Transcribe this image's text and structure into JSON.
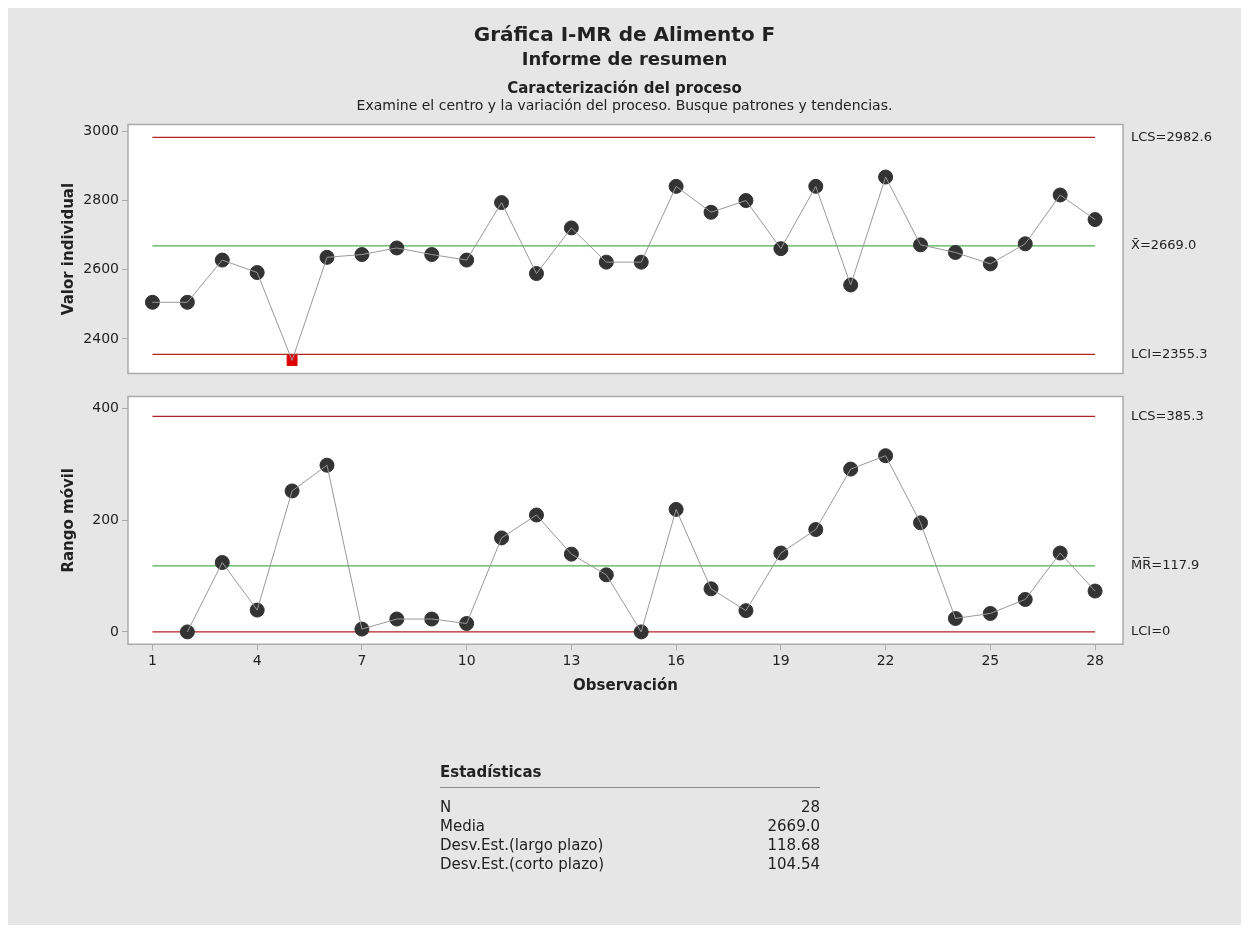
{
  "chart_data": [
    {
      "type": "line",
      "title": "Gráfica I-MR de Alimento F",
      "subtitle": "Informe de resumen",
      "annotations": [
        "Caracterización del proceso",
        "Examine el centro y la variación del proceso. Busque patrones y tendencias."
      ],
      "ylabel": "Valor individual",
      "x": [
        1,
        2,
        3,
        4,
        5,
        6,
        7,
        8,
        9,
        10,
        11,
        12,
        13,
        14,
        15,
        16,
        17,
        18,
        19,
        20,
        21,
        22,
        23,
        24,
        25,
        26,
        27,
        28
      ],
      "xlim": [
        0.3,
        28.8
      ],
      "xticks": [
        1,
        4,
        7,
        10,
        13,
        16,
        19,
        22,
        25,
        28
      ],
      "ylim": [
        2300,
        3020
      ],
      "yticks": [
        2400,
        2600,
        2800,
        3000
      ],
      "tick_labels": "y",
      "series": [
        {
          "type": "line",
          "marker": "none",
          "color": "#999999",
          "values": [
            2506,
            2506,
            2628,
            2592,
            2338,
            2636,
            2644,
            2663,
            2644,
            2628,
            2794,
            2589,
            2721,
            2622,
            2622,
            2841,
            2766,
            2800,
            2661,
            2841,
            2556,
            2868,
            2672,
            2650,
            2617,
            2675,
            2816,
            2745
          ]
        },
        {
          "type": "scatter",
          "marker": "circle",
          "color": "#333333",
          "values": [
            2506,
            2506,
            2628,
            2592,
            null,
            2636,
            2644,
            2663,
            2644,
            2628,
            2794,
            2589,
            2721,
            2622,
            2622,
            2841,
            2766,
            2800,
            2661,
            2841,
            2556,
            2868,
            2672,
            2650,
            2617,
            2675,
            2816,
            2745
          ]
        },
        {
          "type": "scatter",
          "marker": "square",
          "color": "#dd0000",
          "x": [
            5
          ],
          "values": [
            2338
          ]
        }
      ],
      "ref_lines": [
        {
          "axis": "y",
          "value": 2982.6,
          "label": "LCS=2982.6",
          "color": "#b22222"
        },
        {
          "axis": "y",
          "value": 2669.0,
          "label": "X̄=2669.0",
          "color": "#4caf50"
        },
        {
          "axis": "y",
          "value": 2355.3,
          "label": "LCI=2355.3",
          "color": "#b22222"
        }
      ]
    },
    {
      "type": "line",
      "xlabel": "Observación",
      "ylabel": "Rango móvil",
      "x": [
        2,
        3,
        4,
        5,
        6,
        7,
        8,
        9,
        10,
        11,
        12,
        13,
        14,
        15,
        16,
        17,
        18,
        19,
        20,
        21,
        22,
        23,
        24,
        25,
        26,
        27,
        28
      ],
      "xlim": [
        0.3,
        28.8
      ],
      "xticks": [
        1,
        4,
        7,
        10,
        13,
        16,
        19,
        22,
        25,
        28
      ],
      "ylim": [
        -22,
        421
      ],
      "yticks": [
        0,
        200,
        400
      ],
      "series": [
        {
          "type": "line",
          "marker": "none",
          "color": "#999999",
          "values": [
            0,
            124,
            39,
            252,
            298,
            5,
            23,
            23,
            15,
            168,
            209,
            139,
            102,
            0,
            219,
            77,
            38,
            141,
            183,
            291,
            315,
            195,
            24,
            33,
            58,
            141,
            73
          ]
        },
        {
          "type": "scatter",
          "marker": "circle",
          "color": "#333333",
          "values": [
            0,
            124,
            39,
            252,
            298,
            5,
            23,
            23,
            15,
            168,
            209,
            139,
            102,
            0,
            219,
            77,
            38,
            141,
            183,
            291,
            315,
            195,
            24,
            33,
            58,
            141,
            73
          ]
        }
      ],
      "ref_lines": [
        {
          "axis": "y",
          "value": 385.3,
          "label": "LCS=385.3",
          "color": "#b22222"
        },
        {
          "axis": "y",
          "value": 117.9,
          "label": "M̅R̅=117.9",
          "color": "#4caf50"
        },
        {
          "axis": "y",
          "value": 0,
          "label": "LCI=0",
          "color": "#b22222"
        }
      ]
    },
    {
      "type": "other",
      "title": "Estadísticas",
      "categories": [
        "N",
        "Media",
        "Desv.Est.(largo plazo)",
        "Desv.Est.(corto plazo)"
      ],
      "value_labels": [
        "28",
        "2669.0",
        "118.68",
        "104.54"
      ]
    }
  ]
}
